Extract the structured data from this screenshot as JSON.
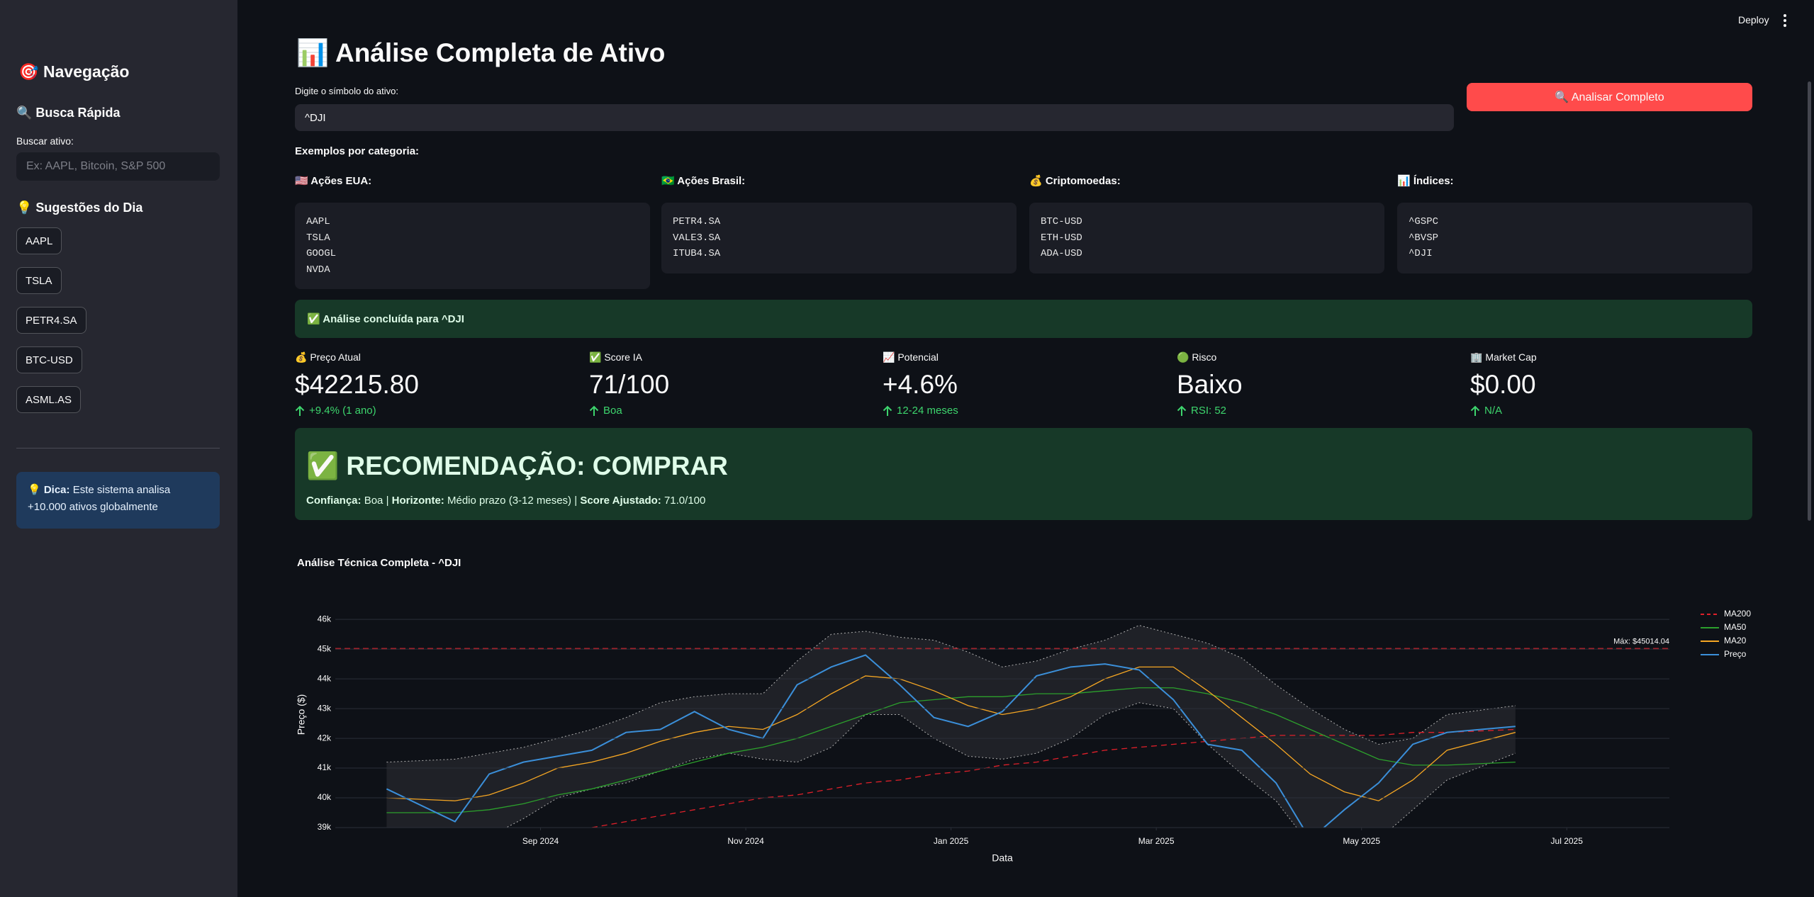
{
  "header": {
    "deploy": "Deploy"
  },
  "sidebar": {
    "title": "🎯 Navegação",
    "search_heading": "🔍 Busca Rápida",
    "search_label": "Buscar ativo:",
    "search_placeholder": "Ex: AAPL, Bitcoin, S&P 500",
    "suggestions_heading": "💡 Sugestões do Dia",
    "suggestions": [
      "AAPL",
      "TSLA",
      "PETR4.SA",
      "BTC-USD",
      "ASML.AS"
    ],
    "tip_label": "💡 Dica:",
    "tip_text": "Este sistema analisa +10.000 ativos globalmente"
  },
  "main": {
    "title": "📊 Análise Completa de Ativo",
    "input_label": "Digite o símbolo do ativo:",
    "input_value": "^DJI",
    "button": "🔍 Analisar Completo",
    "examples_heading": "Exemplos por categoria:",
    "examples": [
      {
        "title": "🇺🇸 Ações EUA:",
        "items": [
          "AAPL",
          "TSLA",
          "GOOGL",
          "NVDA"
        ]
      },
      {
        "title": "🇧🇷 Ações Brasil:",
        "items": [
          "PETR4.SA",
          "VALE3.SA",
          "ITUB4.SA"
        ]
      },
      {
        "title": "💰 Criptomoedas:",
        "items": [
          "BTC-USD",
          "ETH-USD",
          "ADA-USD"
        ]
      },
      {
        "title": "📊 Índices:",
        "items": [
          "^GSPC",
          "^BVSP",
          "^DJI"
        ]
      }
    ],
    "success": "✅ Análise concluída para ^DJI",
    "metrics": [
      {
        "label": "💰 Preço Atual",
        "value": "$42215.80",
        "delta": "+9.4% (1 ano)"
      },
      {
        "label": "✅ Score IA",
        "value": "71/100",
        "delta": "Boa"
      },
      {
        "label": "📈 Potencial",
        "value": "+4.6%",
        "delta": "12-24 meses"
      },
      {
        "label": "🟢 Risco",
        "value": "Baixo",
        "delta": "RSI: 52"
      },
      {
        "label": "🏢 Market Cap",
        "value": "$0.00",
        "delta": "N/A"
      }
    ],
    "recommendation": {
      "title": "✅ RECOMENDAÇÃO: COMPRAR",
      "separator": "|",
      "details": [
        {
          "label": "Confiança:",
          "value": "Boa"
        },
        {
          "label": "Horizonte:",
          "value": "Médio prazo (3-12 meses)"
        },
        {
          "label": "Score Ajustado:",
          "value": "71.0/100"
        }
      ]
    }
  },
  "chart_data": {
    "type": "line",
    "title": "Análise Técnica Completa - ^DJI",
    "xlabel": "Data",
    "ylabel": "Preço ($)",
    "x": [
      "2024-07",
      "2024-08",
      "2024-08",
      "2024-08",
      "2024-09",
      "2024-09",
      "2024-09",
      "2024-10",
      "2024-10",
      "2024-10",
      "2024-11",
      "2024-11",
      "2024-11",
      "2024-12",
      "2024-12",
      "2024-12",
      "2025-01",
      "2025-01",
      "2025-01",
      "2025-02",
      "2025-02",
      "2025-02",
      "2025-03",
      "2025-03",
      "2025-03",
      "2025-04",
      "2025-04",
      "2025-04",
      "2025-05",
      "2025-05",
      "2025-05",
      "2025-06"
    ],
    "xlim": [
      "2024-07",
      "2025-08"
    ],
    "xticks": [
      {
        "value": "2024-09",
        "label": "Sep 2024"
      },
      {
        "value": "2024-11",
        "label": "Nov 2024"
      },
      {
        "value": "2025-01",
        "label": "Jan 2025"
      },
      {
        "value": "2025-03",
        "label": "Mar 2025"
      },
      {
        "value": "2025-05",
        "label": "May 2025"
      },
      {
        "value": "2025-07",
        "label": "Jul 2025"
      }
    ],
    "ylim": [
      39000,
      46600
    ],
    "yticks": [
      {
        "value": 39000,
        "label": "39k"
      },
      {
        "value": 40000,
        "label": "40k"
      },
      {
        "value": 41000,
        "label": "41k"
      },
      {
        "value": 42000,
        "label": "42k"
      },
      {
        "value": 43000,
        "label": "43k"
      },
      {
        "value": 44000,
        "label": "44k"
      },
      {
        "value": 45000,
        "label": "45k"
      },
      {
        "value": 46000,
        "label": "46k"
      }
    ],
    "grid": true,
    "legend": "top-right",
    "series": [
      {
        "name": "MA200",
        "color": "#e0202a",
        "dash": true,
        "values": [
          null,
          null,
          null,
          null,
          null,
          39000,
          39200,
          39400,
          39600,
          39800,
          40000,
          40100,
          40300,
          40500,
          40600,
          40800,
          40900,
          41100,
          41200,
          41400,
          41600,
          41700,
          41800,
          41900,
          42000,
          42100,
          42100,
          42100,
          42100,
          42200,
          42200,
          42300
        ]
      },
      {
        "name": "MA50",
        "color": "#2ca02c",
        "dash": false,
        "values": [
          39500,
          39500,
          39600,
          39800,
          40100,
          40300,
          40600,
          40900,
          41200,
          41500,
          41700,
          42000,
          42400,
          42800,
          43200,
          43300,
          43400,
          43400,
          43500,
          43500,
          43600,
          43700,
          43700,
          43500,
          43200,
          42800,
          42300,
          41800,
          41300,
          41100,
          41100,
          41200
        ]
      },
      {
        "name": "MA20",
        "color": "#f5a623",
        "dash": false,
        "values": [
          40000,
          39900,
          40100,
          40500,
          41000,
          41200,
          41500,
          41900,
          42200,
          42400,
          42300,
          42800,
          43500,
          44100,
          44000,
          43600,
          43100,
          42800,
          43000,
          43400,
          44000,
          44400,
          44400,
          43600,
          42700,
          41800,
          40800,
          40200,
          39900,
          40600,
          41600,
          42200
        ]
      },
      {
        "name": "Preço",
        "color": "#3b8fd9",
        "dash": false,
        "values": [
          40300,
          39200,
          40800,
          41200,
          41400,
          41600,
          42200,
          42300,
          42900,
          42300,
          42000,
          43800,
          44400,
          44800,
          43800,
          42700,
          42400,
          42900,
          44100,
          44400,
          44500,
          44300,
          43300,
          41800,
          41600,
          40500,
          38600,
          39600,
          40500,
          41800,
          42200,
          42400
        ]
      }
    ],
    "bands": {
      "color": "#b0b0b0",
      "upper": [
        41200,
        41300,
        41500,
        41700,
        42000,
        42300,
        42700,
        43200,
        43400,
        43500,
        43500,
        44600,
        45500,
        45600,
        45400,
        45300,
        44900,
        44400,
        44600,
        45000,
        45300,
        45800,
        45500,
        45200,
        44700,
        43800,
        43000,
        42300,
        41800,
        42000,
        42800,
        43100
      ],
      "lower": [
        38800,
        38500,
        38700,
        39300,
        40000,
        40300,
        40500,
        40900,
        41300,
        41500,
        41300,
        41200,
        41700,
        42800,
        42800,
        42000,
        41400,
        41300,
        41500,
        42000,
        42800,
        43200,
        43000,
        41800,
        40800,
        39900,
        38400,
        38200,
        38600,
        39600,
        40600,
        41500
      ]
    },
    "max_line": {
      "value": 45014.04,
      "label": "Máx: $45014.04",
      "color": "#e0202a"
    }
  }
}
